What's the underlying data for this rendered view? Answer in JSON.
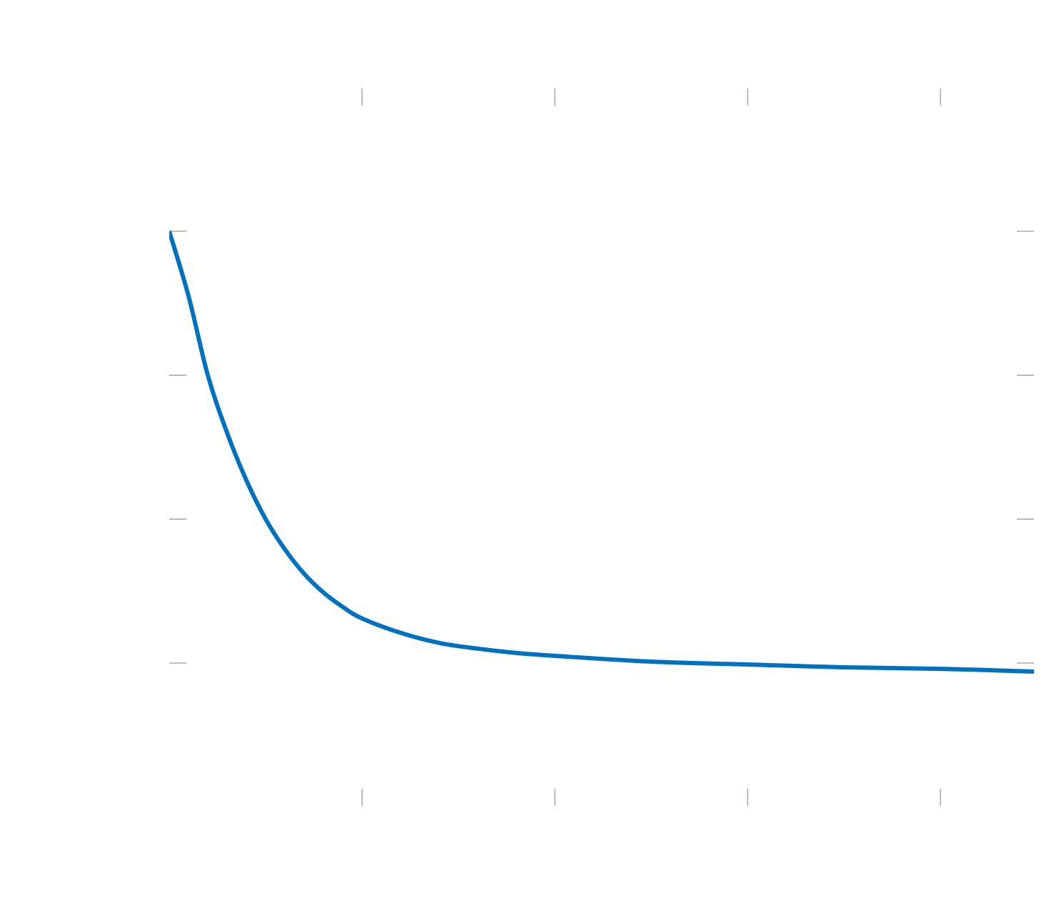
{
  "chart_data": {
    "type": "line",
    "title": "",
    "xlabel": "",
    "ylabel": "",
    "xlim": [
      0,
      9
    ],
    "ylim": [
      0,
      3
    ],
    "x_ticks": [
      1,
      2,
      3,
      4
    ],
    "y_ticks": [
      0,
      1,
      2,
      3
    ],
    "grid": false,
    "legend": "none",
    "series": [
      {
        "color": "#0072bd",
        "x": [
          0,
          0.1,
          0.2,
          0.3,
          0.4,
          0.5,
          0.6,
          0.7,
          0.8,
          0.9,
          1.0,
          1.2,
          1.4,
          1.6,
          1.8,
          2.0,
          2.5,
          3.0,
          3.5,
          4.0,
          4.5
        ],
        "y": [
          3.0,
          2.55,
          2.0,
          1.6,
          1.27,
          1.0,
          0.79,
          0.62,
          0.49,
          0.39,
          0.31,
          0.21,
          0.14,
          0.1,
          0.07,
          0.05,
          0.01,
          -0.01,
          -0.03,
          -0.04,
          -0.06
        ]
      }
    ],
    "colors": {
      "line": "#0072bd",
      "tick": "#999999",
      "background": "#ffffff"
    }
  }
}
